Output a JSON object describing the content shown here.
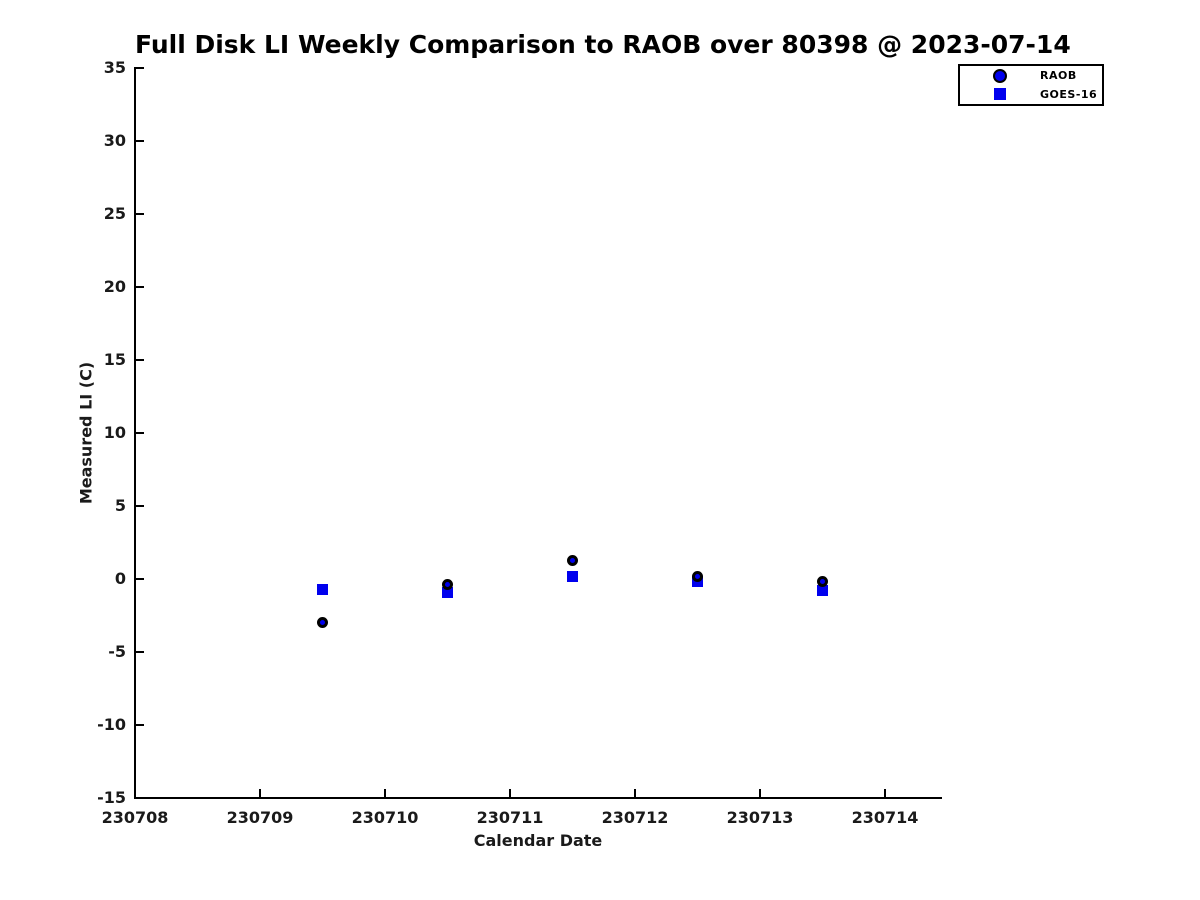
{
  "chart_data": {
    "type": "scatter",
    "title": "Full Disk LI Weekly Comparison to RAOB over 80398 @ 2023-07-14",
    "xlabel": "Calendar Date",
    "ylabel": "Measured LI (C)",
    "xlim": [
      230708,
      230714.45
    ],
    "ylim": [
      -15,
      35
    ],
    "x_ticks": [
      230708,
      230709,
      230710,
      230711,
      230712,
      230713,
      230714
    ],
    "y_ticks": [
      35,
      30,
      25,
      20,
      15,
      10,
      5,
      0,
      -5,
      -10,
      -15
    ],
    "grid": false,
    "legend_position": "top-right",
    "marker_fill_color": "#0000EE",
    "marker_edge_color": "#000000",
    "series": [
      {
        "name": "RAOB",
        "marker": "circle",
        "color": "#0000EE",
        "edge_color": "#000000",
        "x": [
          230709.5,
          230710.5,
          230711.5,
          230712.5,
          230713.5
        ],
        "y": [
          -3.0,
          -0.4,
          1.3,
          0.2,
          -0.2
        ]
      },
      {
        "name": "GOES-16",
        "marker": "square",
        "color": "#0000EE",
        "x": [
          230709.5,
          230710.5,
          230711.5,
          230712.5,
          230713.5
        ],
        "y": [
          -0.7,
          -0.9,
          0.2,
          -0.2,
          -0.8
        ]
      }
    ]
  }
}
